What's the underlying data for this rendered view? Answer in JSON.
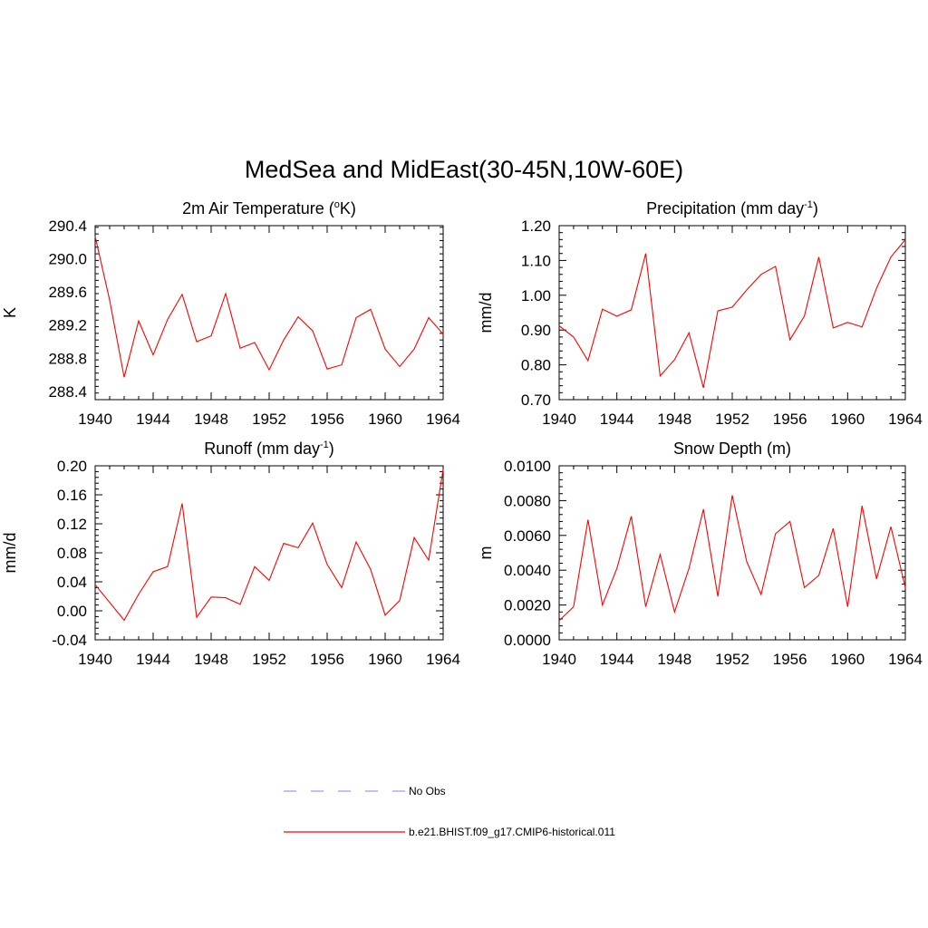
{
  "main_title": "MedSea and MidEast(30-45N,10W-60E)",
  "colors": {
    "model": "#ff0000",
    "obs": "#9b9bff",
    "axis": "#000000"
  },
  "legend": {
    "obs": {
      "label": "No Obs",
      "style": "dashed"
    },
    "model": {
      "label": "b.e21.BHIST.f09_g17.CMIP6-historical.011",
      "style": "solid"
    }
  },
  "chart_data": [
    {
      "type": "line",
      "title": {
        "main": "2m Air Temperature (",
        "sup": "o",
        "rest": "K)"
      },
      "ylabel": "K",
      "xlim": [
        1940,
        1964
      ],
      "xticks": [
        1940,
        1944,
        1948,
        1952,
        1956,
        1960,
        1964
      ],
      "ylim": [
        288.3,
        290.4
      ],
      "yticks": [
        288.4,
        288.8,
        289.2,
        289.6,
        290.0,
        290.4
      ],
      "ytick_labels": [
        "288.4",
        "288.8",
        "289.2",
        "289.6",
        "290.0",
        "290.4"
      ],
      "series": [
        {
          "name": "b.e21.BHIST.f09_g17.CMIP6-historical.011",
          "x": [
            1940,
            1941,
            1942,
            1943,
            1944,
            1945,
            1946,
            1947,
            1948,
            1949,
            1950,
            1951,
            1952,
            1953,
            1954,
            1955,
            1956,
            1957,
            1958,
            1959,
            1960,
            1961,
            1962,
            1963,
            1964
          ],
          "y": [
            290.27,
            289.5,
            288.57,
            289.25,
            288.84,
            289.27,
            289.57,
            289.0,
            289.07,
            289.58,
            288.92,
            288.99,
            288.66,
            289.02,
            289.3,
            289.13,
            288.67,
            288.72,
            289.29,
            289.39,
            288.91,
            288.7,
            288.91,
            289.29,
            289.09
          ]
        }
      ]
    },
    {
      "type": "line",
      "title": {
        "main": "Precipitation (mm day",
        "sup": "-1",
        "rest": ")"
      },
      "ylabel": "mm/d",
      "xlim": [
        1940,
        1964
      ],
      "xticks": [
        1940,
        1944,
        1948,
        1952,
        1956,
        1960,
        1964
      ],
      "ylim": [
        0.7,
        1.2
      ],
      "yticks": [
        0.7,
        0.8,
        0.9,
        1.0,
        1.1,
        1.2
      ],
      "ytick_labels": [
        "0.70",
        "0.80",
        "0.90",
        "1.00",
        "1.10",
        "1.20"
      ],
      "series": [
        {
          "name": "b.e21.BHIST.f09_g17.CMIP6-historical.011",
          "x": [
            1940,
            1941,
            1942,
            1943,
            1944,
            1945,
            1946,
            1947,
            1948,
            1949,
            1950,
            1951,
            1952,
            1953,
            1954,
            1955,
            1956,
            1957,
            1958,
            1959,
            1960,
            1961,
            1962,
            1963,
            1964
          ],
          "y": [
            0.912,
            0.88,
            0.812,
            0.96,
            0.94,
            0.958,
            1.12,
            0.768,
            0.815,
            0.892,
            0.734,
            0.955,
            0.966,
            1.015,
            1.06,
            1.083,
            0.872,
            0.94,
            1.11,
            0.906,
            0.922,
            0.909,
            1.02,
            1.11,
            1.16
          ]
        }
      ]
    },
    {
      "type": "line",
      "title": {
        "main": "Runoff (mm day",
        "sup": "-1",
        "rest": ")"
      },
      "ylabel": "mm/d",
      "xlim": [
        1940,
        1964
      ],
      "xticks": [
        1940,
        1944,
        1948,
        1952,
        1956,
        1960,
        1964
      ],
      "ylim": [
        -0.04,
        0.2
      ],
      "yticks": [
        -0.04,
        0.0,
        0.04,
        0.08,
        0.12,
        0.16,
        0.2
      ],
      "ytick_labels": [
        "-0.04",
        "0.00",
        "0.04",
        "0.08",
        "0.12",
        "0.16",
        "0.20"
      ],
      "series": [
        {
          "name": "b.e21.BHIST.f09_g17.CMIP6-historical.011",
          "x": [
            1940,
            1942,
            1943,
            1944,
            1945,
            1946,
            1947,
            1948,
            1949,
            1950,
            1951,
            1952,
            1953,
            1954,
            1955,
            1956,
            1957,
            1958,
            1959,
            1960,
            1961,
            1962,
            1963,
            1964
          ],
          "y": [
            0.036,
            -0.013,
            0.023,
            0.054,
            0.061,
            0.148,
            -0.009,
            0.019,
            0.018,
            0.009,
            0.061,
            0.042,
            0.093,
            0.087,
            0.121,
            0.064,
            0.032,
            0.095,
            0.057,
            -0.006,
            0.014,
            0.101,
            0.07,
            0.195
          ]
        }
      ]
    },
    {
      "type": "line",
      "title": {
        "main": "Snow Depth (m)",
        "sup": "",
        "rest": ""
      },
      "ylabel": "m",
      "xlim": [
        1940,
        1964
      ],
      "xticks": [
        1940,
        1944,
        1948,
        1952,
        1956,
        1960,
        1964
      ],
      "ylim": [
        0.0,
        0.01
      ],
      "yticks": [
        0.0,
        0.002,
        0.004,
        0.006,
        0.008,
        0.01
      ],
      "ytick_labels": [
        "0.0000",
        "0.0020",
        "0.0040",
        "0.0060",
        "0.0080",
        "0.0100"
      ],
      "series": [
        {
          "name": "b.e21.BHIST.f09_g17.CMIP6-historical.011",
          "x": [
            1940,
            1941,
            1942,
            1943,
            1944,
            1945,
            1946,
            1947,
            1948,
            1949,
            1950,
            1951,
            1952,
            1953,
            1954,
            1955,
            1956,
            1957,
            1958,
            1959,
            1960,
            1961,
            1962,
            1963,
            1964
          ],
          "y": [
            0.0011,
            0.0019,
            0.0069,
            0.002,
            0.0041,
            0.0071,
            0.0019,
            0.0049,
            0.0016,
            0.0041,
            0.0075,
            0.0025,
            0.0083,
            0.0045,
            0.0026,
            0.0061,
            0.0068,
            0.003,
            0.0037,
            0.0064,
            0.0019,
            0.0077,
            0.0035,
            0.0065,
            0.003
          ]
        }
      ]
    }
  ]
}
